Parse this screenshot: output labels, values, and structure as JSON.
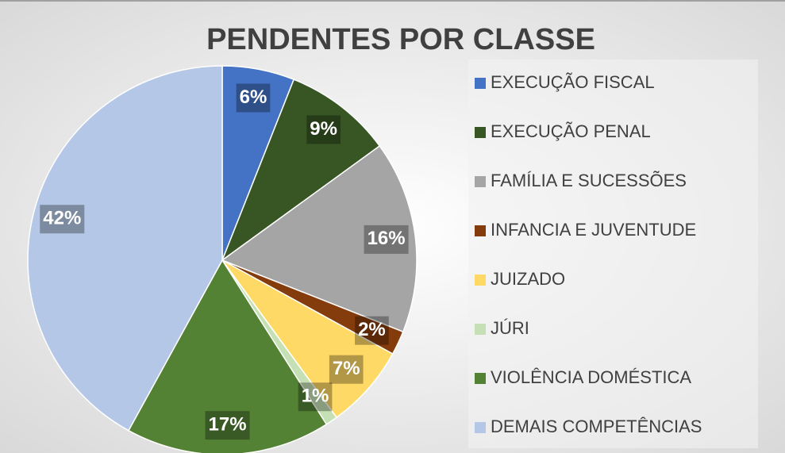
{
  "chart_data": {
    "type": "pie",
    "title": "PENDENTES POR CLASSE",
    "categories": [
      "EXECUÇÃO FISCAL",
      "EXECUÇÃO PENAL",
      "FAMÍLIA E SUCESSÕES",
      "INFANCIA E JUVENTUDE",
      "JUIZADO",
      "JÚRI",
      "VIOLÊNCIA DOMÉSTICA",
      "DEMAIS COMPETÊNCIAS"
    ],
    "values": [
      6,
      9,
      16,
      2,
      7,
      1,
      17,
      42
    ],
    "value_labels": [
      "6%",
      "9%",
      "16%",
      "2%",
      "7%",
      "1%",
      "17%",
      "42%"
    ],
    "colors": [
      "#4472c4",
      "#375623",
      "#a5a5a5",
      "#843c0c",
      "#ffd966",
      "#c5e0b4",
      "#548235",
      "#b4c7e7"
    ],
    "legend": "right"
  }
}
